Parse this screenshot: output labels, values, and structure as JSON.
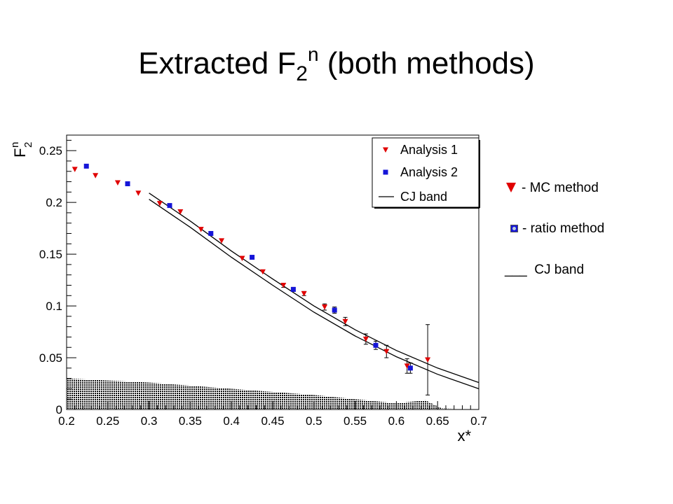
{
  "title": {
    "main": "Extracted F",
    "sub": "2",
    "sup": "n",
    "rest": " (both methods)"
  },
  "side_legend": {
    "mc": "- MC method",
    "ratio": "- ratio method",
    "cj_line": "___",
    "cj": "CJ band"
  },
  "chart_data": {
    "type": "scatter",
    "xlabel": "x*",
    "ylabel": "F",
    "ylabel_sub": "2",
    "ylabel_sup": "n",
    "xlim": [
      0.2,
      0.7
    ],
    "ylim": [
      0,
      0.265
    ],
    "xticks": [
      "0.2",
      "0.25",
      "0.3",
      "0.35",
      "0.4",
      "0.45",
      "0.5",
      "0.55",
      "0.6",
      "0.65",
      "0.7"
    ],
    "yticks": [
      "0",
      "0.05",
      "0.1",
      "0.15",
      "0.2",
      "0.25"
    ],
    "legend": {
      "position": "top-right",
      "entries": [
        "Analysis 1",
        "Analysis 2",
        "CJ band"
      ]
    },
    "series": [
      {
        "name": "Analysis 1",
        "color": "#e00000",
        "marker": "triangle-down",
        "points": [
          [
            0.21,
            0.232
          ],
          [
            0.235,
            0.226
          ],
          [
            0.262,
            0.219
          ],
          [
            0.287,
            0.209
          ],
          [
            0.313,
            0.199
          ],
          [
            0.338,
            0.191
          ],
          [
            0.363,
            0.174
          ],
          [
            0.388,
            0.163
          ],
          [
            0.413,
            0.146
          ],
          [
            0.438,
            0.133
          ],
          [
            0.463,
            0.12
          ],
          [
            0.488,
            0.112
          ],
          [
            0.513,
            0.099
          ],
          [
            0.538,
            0.085
          ],
          [
            0.563,
            0.068
          ],
          [
            0.588,
            0.056
          ],
          [
            0.613,
            0.042
          ],
          [
            0.638,
            0.048
          ]
        ],
        "errors": [
          0,
          0,
          0,
          0,
          0,
          0,
          0,
          0,
          0,
          0,
          0.002,
          0.002,
          0.003,
          0.004,
          0.005,
          0.006,
          0.007,
          0.034
        ]
      },
      {
        "name": "Analysis 2",
        "color": "#1515d8",
        "marker": "square",
        "points": [
          [
            0.224,
            0.235
          ],
          [
            0.274,
            0.218
          ],
          [
            0.325,
            0.197
          ],
          [
            0.375,
            0.17
          ],
          [
            0.425,
            0.147
          ],
          [
            0.475,
            0.116
          ],
          [
            0.525,
            0.096
          ],
          [
            0.575,
            0.062
          ],
          [
            0.617,
            0.04
          ]
        ],
        "errors": [
          0,
          0,
          0,
          0,
          0,
          0.002,
          0.003,
          0.004,
          0.005
        ]
      }
    ],
    "cj_band": {
      "name": "CJ band",
      "upper": [
        [
          0.3,
          0.209
        ],
        [
          0.35,
          0.182
        ],
        [
          0.4,
          0.153
        ],
        [
          0.45,
          0.126
        ],
        [
          0.5,
          0.1
        ],
        [
          0.55,
          0.077
        ],
        [
          0.6,
          0.057
        ],
        [
          0.65,
          0.04
        ],
        [
          0.7,
          0.026
        ]
      ],
      "lower": [
        [
          0.3,
          0.203
        ],
        [
          0.35,
          0.176
        ],
        [
          0.4,
          0.147
        ],
        [
          0.45,
          0.12
        ],
        [
          0.5,
          0.094
        ],
        [
          0.55,
          0.071
        ],
        [
          0.6,
          0.051
        ],
        [
          0.65,
          0.034
        ],
        [
          0.7,
          0.02
        ]
      ]
    },
    "systematic_band": [
      [
        0.2,
        0.03
      ],
      [
        0.3,
        0.026
      ],
      [
        0.4,
        0.02
      ],
      [
        0.5,
        0.014
      ],
      [
        0.55,
        0.01
      ],
      [
        0.6,
        0.006
      ],
      [
        0.635,
        0.009
      ],
      [
        0.655,
        0.001
      ],
      [
        0.7,
        0.0
      ]
    ]
  }
}
